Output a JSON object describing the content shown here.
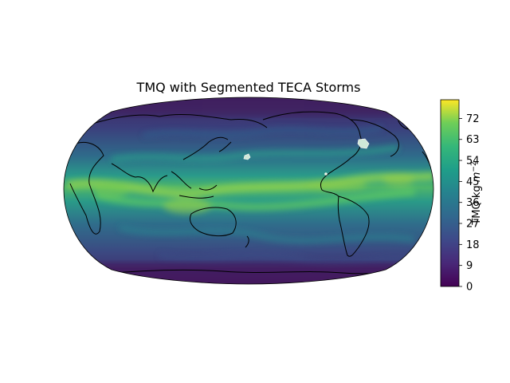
{
  "title": "TMQ with Segmented TECA Storms",
  "colorbar": {
    "label_main": "TMQ kg ",
    "label_unit_base": "m",
    "label_unit_exp": "−2",
    "min": 0,
    "max": 80,
    "ticks": [
      0,
      9,
      18,
      27,
      36,
      45,
      54,
      63,
      72
    ],
    "tick_labels": [
      "0",
      "9",
      "18",
      "27",
      "36",
      "45",
      "54",
      "63",
      "72"
    ],
    "colormap": "viridis"
  },
  "map": {
    "projection": "robinson",
    "central_longitude": 180,
    "field": "TMQ",
    "coastlines": true,
    "storm_mask_color": "#cfe8d8"
  },
  "colors": {
    "viridis_0": "#440154",
    "viridis_1": "#3b528b",
    "viridis_2": "#21918c",
    "viridis_3": "#5ec962",
    "viridis_4": "#fde725"
  }
}
